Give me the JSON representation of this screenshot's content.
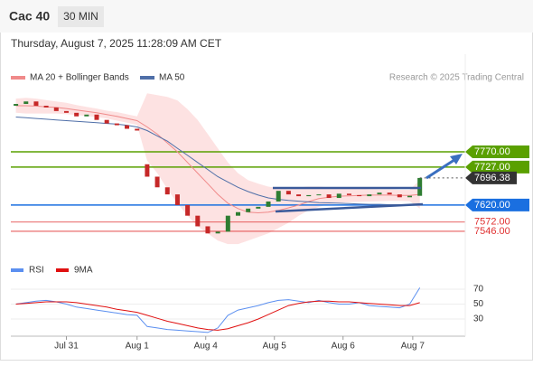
{
  "header": {
    "symbol": "Cac 40",
    "interval": "30 MIN",
    "timestamp": "Thursday, August 7, 2025 11:28:09 AM CET"
  },
  "chart_data": [
    {
      "type": "candlestick",
      "source": "Research © 2025 Trading Central",
      "xlim": [
        -0.5,
        44.5
      ],
      "ylim": [
        7472,
        7956
      ],
      "up_color": "#2e7d32",
      "down_color": "#c62828",
      "open": [
        7900,
        7905,
        7912,
        7900,
        7895,
        7885,
        7880,
        7870,
        7875,
        7860,
        7850,
        7845,
        7835,
        7735,
        7700,
        7670,
        7650,
        7620,
        7590,
        7560,
        7540,
        7545,
        7590,
        7600,
        7610,
        7615,
        7630,
        7660,
        7650,
        7645,
        7648,
        7650,
        7640,
        7652,
        7648,
        7645,
        7650,
        7655,
        7650,
        7642,
        7646
      ],
      "close": [
        7905,
        7912,
        7900,
        7895,
        7885,
        7880,
        7870,
        7875,
        7860,
        7850,
        7845,
        7835,
        7830,
        7700,
        7670,
        7650,
        7620,
        7590,
        7560,
        7540,
        7545,
        7590,
        7600,
        7610,
        7615,
        7630,
        7660,
        7650,
        7645,
        7648,
        7650,
        7640,
        7652,
        7648,
        7645,
        7650,
        7655,
        7650,
        7642,
        7646,
        7696.38
      ],
      "series": [
        {
          "name": "MA 20 + Bollinger Bands",
          "color": "#f08a8a",
          "band_color": "#fde2e2",
          "values": [
            7900,
            7900,
            7899,
            7897,
            7895,
            7892,
            7888,
            7884,
            7880,
            7875,
            7870,
            7864,
            7858,
            7840,
            7820,
            7795,
            7770,
            7740,
            7710,
            7680,
            7650,
            7625,
            7610,
            7600,
            7598,
            7600,
            7605,
            7612,
            7620,
            7630,
            7638,
            7642,
            7645,
            7646,
            7647,
            7648,
            7648,
            7648,
            7647,
            7647,
            7650
          ],
          "upper": [
            7920,
            7922,
            7920,
            7916,
            7912,
            7908,
            7902,
            7897,
            7892,
            7886,
            7882,
            7876,
            7870,
            7935,
            7930,
            7925,
            7915,
            7890,
            7860,
            7820,
            7780,
            7740,
            7710,
            7690,
            7680,
            7672,
            7668,
            7668,
            7670,
            7672,
            7672,
            7670,
            7668,
            7666,
            7666,
            7665,
            7664,
            7664,
            7663,
            7663,
            7690
          ],
          "lower": [
            7880,
            7878,
            7878,
            7878,
            7878,
            7876,
            7874,
            7871,
            7868,
            7864,
            7858,
            7852,
            7846,
            7745,
            7710,
            7665,
            7625,
            7590,
            7560,
            7540,
            7520,
            7510,
            7510,
            7520,
            7530,
            7540,
            7555,
            7570,
            7590,
            7605,
            7615,
            7622,
            7626,
            7628,
            7629,
            7630,
            7631,
            7632,
            7632,
            7631,
            7610
          ]
        },
        {
          "name": "MA 50",
          "color": "#4f6fa8",
          "values": [
            7868,
            7866,
            7864,
            7862,
            7860,
            7858,
            7856,
            7854,
            7852,
            7850,
            7848,
            7845,
            7840,
            7830,
            7815,
            7800,
            7780,
            7760,
            7740,
            7720,
            7700,
            7685,
            7670,
            7658,
            7648,
            7640,
            7636,
            7633,
            7631,
            7629,
            7627,
            7626,
            7625,
            7624,
            7623,
            7622,
            7622,
            7621,
            7621,
            7620,
            7620
          ]
        }
      ],
      "levels": [
        {
          "value": 7770,
          "label": "7770.00",
          "color": "#5aa000",
          "boxed": true
        },
        {
          "value": 7727,
          "label": "7727.00",
          "color": "#5aa000",
          "boxed": true
        },
        {
          "value": 7620,
          "label": "7620.00",
          "color": "#1a6fe0",
          "boxed": true
        },
        {
          "value": 7572,
          "label": "7572.00",
          "color": "#e03030",
          "boxed": false
        },
        {
          "value": 7546,
          "label": "7546.00",
          "color": "#e03030",
          "boxed": false
        }
      ],
      "last_price": {
        "value": 7696.38,
        "label": "7696.38",
        "color": "#333333"
      }
    },
    {
      "type": "line",
      "xlim": [
        -0.5,
        44.5
      ],
      "ylim": [
        10,
        80
      ],
      "yticks": [
        70,
        50,
        30
      ],
      "xticks": [
        {
          "value": 5,
          "label": "Jul 31"
        },
        {
          "value": 12,
          "label": "Aug 1"
        },
        {
          "value": 18.8,
          "label": "Aug 4"
        },
        {
          "value": 25.6,
          "label": "Aug 5"
        },
        {
          "value": 32.4,
          "label": "Aug 6"
        },
        {
          "value": 39.3,
          "label": "Aug 7"
        }
      ],
      "series": [
        {
          "name": "RSI",
          "color": "#5b8ff0",
          "values": [
            50,
            52,
            54,
            55,
            53,
            50,
            46,
            44,
            42,
            40,
            38,
            36,
            35,
            20,
            18,
            16,
            15,
            14,
            13,
            12,
            18,
            35,
            42,
            45,
            48,
            52,
            55,
            56,
            54,
            52,
            55,
            52,
            50,
            50,
            52,
            48,
            47,
            46,
            45,
            50,
            72
          ]
        },
        {
          "name": "9MA",
          "color": "#e01010",
          "values": [
            50,
            51,
            52,
            53,
            53,
            53,
            52,
            50,
            48,
            46,
            43,
            41,
            39,
            35,
            31,
            27,
            24,
            21,
            18,
            16,
            15,
            17,
            21,
            25,
            30,
            36,
            42,
            48,
            51,
            53,
            54,
            54,
            53,
            53,
            52,
            51,
            50,
            49,
            48,
            48,
            52
          ]
        }
      ]
    }
  ]
}
